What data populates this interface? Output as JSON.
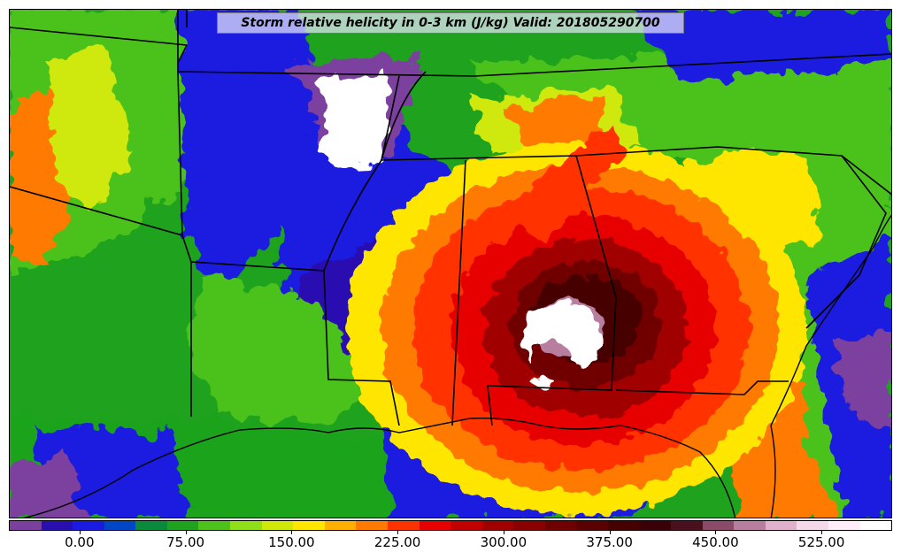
{
  "title": "Storm relative helicity in 0-3 km (J/kg) Valid: 201805290700",
  "colorbar": {
    "colors": [
      "#7b3f9e",
      "#2a0fb0",
      "#1a1ae0",
      "#0047c8",
      "#0a8a3c",
      "#1fa31f",
      "#4cc21a",
      "#8fe01a",
      "#cfe80a",
      "#ffe600",
      "#ffb000",
      "#ff7a00",
      "#ff3300",
      "#e60000",
      "#c00000",
      "#a00000",
      "#8a0000",
      "#700000",
      "#5a0000",
      "#460000",
      "#3a0008",
      "#4a1020",
      "#8a4a68",
      "#b87ea0",
      "#e0b0cc",
      "#f5d8ea",
      "#ffeefa",
      "#ffffff"
    ],
    "ticks": [
      {
        "label": "0.00",
        "value": 0
      },
      {
        "label": "75.00",
        "value": 75
      },
      {
        "label": "150.00",
        "value": 150
      },
      {
        "label": "225.00",
        "value": 225
      },
      {
        "label": "300.00",
        "value": 300
      },
      {
        "label": "375.00",
        "value": 375
      },
      {
        "label": "450.00",
        "value": 450
      },
      {
        "label": "525.00",
        "value": 525
      }
    ],
    "min": -50,
    "max": 575
  }
}
